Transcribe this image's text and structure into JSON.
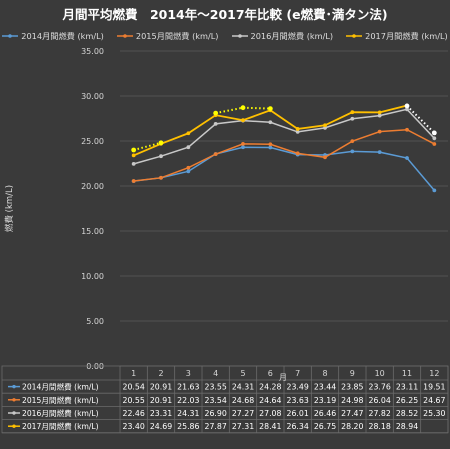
{
  "chart_data": {
    "type": "line",
    "title": "月間平均燃費　2014年～2017年比較 (e燃費･満タン法)",
    "xlabel": "月",
    "ylabel": "燃費 (km/L)",
    "ylim": [
      0,
      35
    ],
    "yticks": [
      "0.00",
      "5.00",
      "10.00",
      "15.00",
      "20.00",
      "25.00",
      "30.00",
      "35.00"
    ],
    "categories": [
      "1",
      "2",
      "3",
      "4",
      "5",
      "6",
      "7",
      "8",
      "9",
      "10",
      "11",
      "12"
    ],
    "grid": true,
    "legend_position": "top",
    "series": [
      {
        "name": "2014月間燃費 (km/L)",
        "color": "#5b9bd5",
        "values": [
          20.54,
          20.91,
          21.63,
          23.55,
          24.31,
          24.28,
          23.49,
          23.44,
          23.85,
          23.76,
          23.11,
          19.51
        ],
        "labels": [
          "20.54",
          "20.91",
          "21.63",
          "23.55",
          "24.31",
          "24.28",
          "23.49",
          "23.44",
          "23.85",
          "23.76",
          "23.11",
          "19.51"
        ]
      },
      {
        "name": "2015月間燃費 (km/L)",
        "color": "#ed7d31",
        "values": [
          20.55,
          20.91,
          22.03,
          23.54,
          24.68,
          24.64,
          23.63,
          23.19,
          24.98,
          26.04,
          26.25,
          24.67
        ],
        "labels": [
          "20.55",
          "20.91",
          "22.03",
          "23.54",
          "24.68",
          "24.64",
          "23.63",
          "23.19",
          "24.98",
          "26.04",
          "26.25",
          "24.67"
        ]
      },
      {
        "name": "2016月間燃費 (km/L)",
        "color": "#c8c8c8",
        "values": [
          22.46,
          23.31,
          24.31,
          26.9,
          27.27,
          27.08,
          26.01,
          26.46,
          27.47,
          27.82,
          28.52,
          25.3
        ],
        "labels": [
          "22.46",
          "23.31",
          "24.31",
          "26.90",
          "27.27",
          "27.08",
          "26.01",
          "26.46",
          "27.47",
          "27.82",
          "28.52",
          "25.30"
        ]
      },
      {
        "name": "2017月間燃費 (km/L)",
        "color": "#ffc000",
        "values": [
          23.4,
          24.69,
          25.86,
          27.87,
          27.31,
          28.41,
          26.34,
          26.75,
          28.2,
          28.18,
          28.94,
          null
        ],
        "labels": [
          "23.40",
          "24.69",
          "25.86",
          "27.87",
          "27.31",
          "28.41",
          "26.34",
          "26.75",
          "28.20",
          "28.18",
          "28.94",
          ""
        ]
      }
    ],
    "annotation_lines": [
      {
        "color": "#ffff00",
        "points": [
          [
            1,
            24.0
          ],
          [
            2,
            24.8
          ]
        ]
      },
      {
        "color": "#ffff00",
        "points": [
          [
            4,
            28.1
          ],
          [
            5,
            28.7
          ],
          [
            6,
            28.6
          ]
        ]
      },
      {
        "color": "#ffffff",
        "points": [
          [
            11,
            28.9
          ],
          [
            12,
            25.9
          ]
        ]
      }
    ]
  }
}
